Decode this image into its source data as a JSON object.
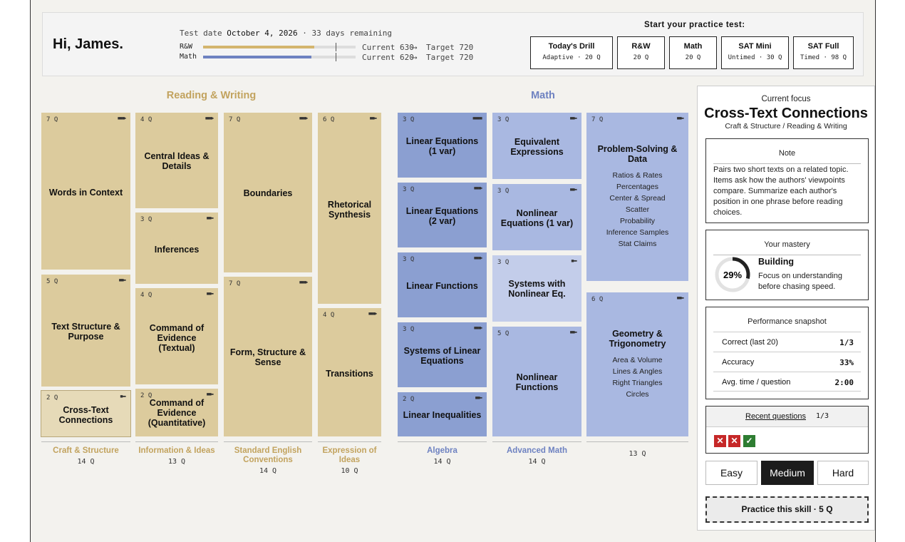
{
  "greeting": "Hi, James.",
  "test_info": {
    "label": "Test date",
    "date": "October 4, 2026",
    "remaining": "· 33 days remaining"
  },
  "progress": [
    {
      "name": "R&W",
      "current": "Current 630",
      "target": "Target 720",
      "fill": 0.73,
      "target_pos": 0.87,
      "color": "#d4b56e"
    },
    {
      "name": "Math",
      "current": "Current 620",
      "target": "Target 720",
      "fill": 0.71,
      "target_pos": 0.87,
      "color": "#6e82c1"
    }
  ],
  "start_label": "Start your practice test:",
  "tests": [
    {
      "title": "Today's Drill",
      "sub": "Adaptive · 20 Q"
    },
    {
      "title": "R&W",
      "sub": "20 Q"
    },
    {
      "title": "Math",
      "sub": "20 Q"
    },
    {
      "title": "SAT Mini",
      "sub": "Untimed · 30 Q"
    },
    {
      "title": "SAT Full",
      "sub": "Timed · 98 Q"
    }
  ],
  "sections": {
    "rw": "Reading & Writing",
    "math": "Math"
  },
  "rw_tiles": [
    {
      "q": "7 Q",
      "dots": "■■■▪",
      "title": "Words in Context"
    },
    {
      "q": "5 Q",
      "dots": "■■▪▪",
      "title": "Text Structure & Purpose"
    },
    {
      "q": "2 Q",
      "dots": "■▪▪▪",
      "title": "Cross-Text Connections"
    },
    {
      "q": "4 Q",
      "dots": "■■■▪",
      "title": "Central Ideas & Details"
    },
    {
      "q": "3 Q",
      "dots": "■■▪▪",
      "title": "Inferences"
    },
    {
      "q": "4 Q",
      "dots": "■■▪▪",
      "title": "Command of Evidence (Textual)"
    },
    {
      "q": "2 Q",
      "dots": "■■▪▪",
      "title": "Command of Evidence (Quantitative)"
    },
    {
      "q": "7 Q",
      "dots": "■■■▪",
      "title": "Boundaries"
    },
    {
      "q": "7 Q",
      "dots": "■■■▪",
      "title": "Form, Structure & Sense"
    },
    {
      "q": "6 Q",
      "dots": "■■▪▪",
      "title": "Rhetorical Synthesis"
    },
    {
      "q": "4 Q",
      "dots": "■■■▪",
      "title": "Transitions"
    }
  ],
  "math_tiles": [
    {
      "q": "3 Q",
      "dots": "■■■■",
      "title": "Linear Equations (1 var)"
    },
    {
      "q": "3 Q",
      "dots": "■■■▪",
      "title": "Linear Equations (2 var)"
    },
    {
      "q": "3 Q",
      "dots": "■■■▪",
      "title": "Linear Functions"
    },
    {
      "q": "3 Q",
      "dots": "■■■▪",
      "title": "Systems of Linear Equations"
    },
    {
      "q": "2 Q",
      "dots": "■■▪▪",
      "title": "Linear Inequalities"
    },
    {
      "q": "3 Q",
      "dots": "■■▪▪",
      "title": "Equivalent Expressions"
    },
    {
      "q": "3 Q",
      "dots": "■■▪▪",
      "title": "Nonlinear Equations (1 var)"
    },
    {
      "q": "3 Q",
      "dots": "■▪▪▪",
      "title": "Systems with Nonlinear Eq."
    },
    {
      "q": "5 Q",
      "dots": "■■▪▪",
      "title": "Nonlinear Functions"
    },
    {
      "q": "7 Q",
      "dots": "■■▪▪",
      "title": "Problem-Solving & Data",
      "items": [
        "Ratios & Rates",
        "Percentages",
        "Center & Spread",
        "Scatter",
        "Probability",
        "Inference Samples",
        "Stat Claims"
      ]
    },
    {
      "q": "6 Q",
      "dots": "■■▪▪",
      "title": "Geometry & Trigonometry",
      "items": [
        "Area & Volume",
        "Lines & Angles",
        "Right Triangles",
        "Circles"
      ]
    }
  ],
  "groups": [
    {
      "name": "Craft & Structure",
      "count": "14 Q"
    },
    {
      "name": "Information & Ideas",
      "count": "13 Q"
    },
    {
      "name": "Standard English Conventions",
      "count": "14 Q"
    },
    {
      "name": "Expression of Ideas",
      "count": "10 Q"
    },
    {
      "name": "Algebra",
      "count": "14 Q"
    },
    {
      "name": "Advanced Math",
      "count": "14 Q"
    },
    {
      "name": "",
      "count": "13 Q"
    }
  ],
  "panel": {
    "focus_label": "Current focus",
    "focus_title": "Cross-Text Connections",
    "focus_path": "Craft & Structure / Reading & Writing",
    "note_title": "Note",
    "note_text": "Pairs two short texts on a related topic. Items ask how the authors' viewpoints compare. Summarize each author's position in one phrase before reading choices.",
    "mastery_title": "Your mastery",
    "mastery_pct": "29%",
    "mastery_fraction": 0.29,
    "mastery_level": "Building",
    "mastery_text": "Focus on understanding before chasing speed.",
    "perf_title": "Performance snapshot",
    "perf": [
      {
        "label": "Correct (last 20)",
        "value": "1/3"
      },
      {
        "label": "Accuracy",
        "value": "33%"
      },
      {
        "label": "Avg. time / question",
        "value": "2:00"
      }
    ],
    "recent_label": "Recent questions",
    "recent_count": "1/3",
    "recent_marks": [
      "✕",
      "✕",
      "✓"
    ],
    "difficulty": [
      "Easy",
      "Medium",
      "Hard"
    ],
    "difficulty_selected": "Medium",
    "practice_button": "Practice this skill · 5 Q"
  },
  "colors": {
    "rw": "#dccb9d",
    "math_dark": "#8b9fd1",
    "math_mid": "#a9b8e1",
    "math_light": "#c3cdea",
    "wrong": "#c62828",
    "right": "#2e7d32"
  }
}
